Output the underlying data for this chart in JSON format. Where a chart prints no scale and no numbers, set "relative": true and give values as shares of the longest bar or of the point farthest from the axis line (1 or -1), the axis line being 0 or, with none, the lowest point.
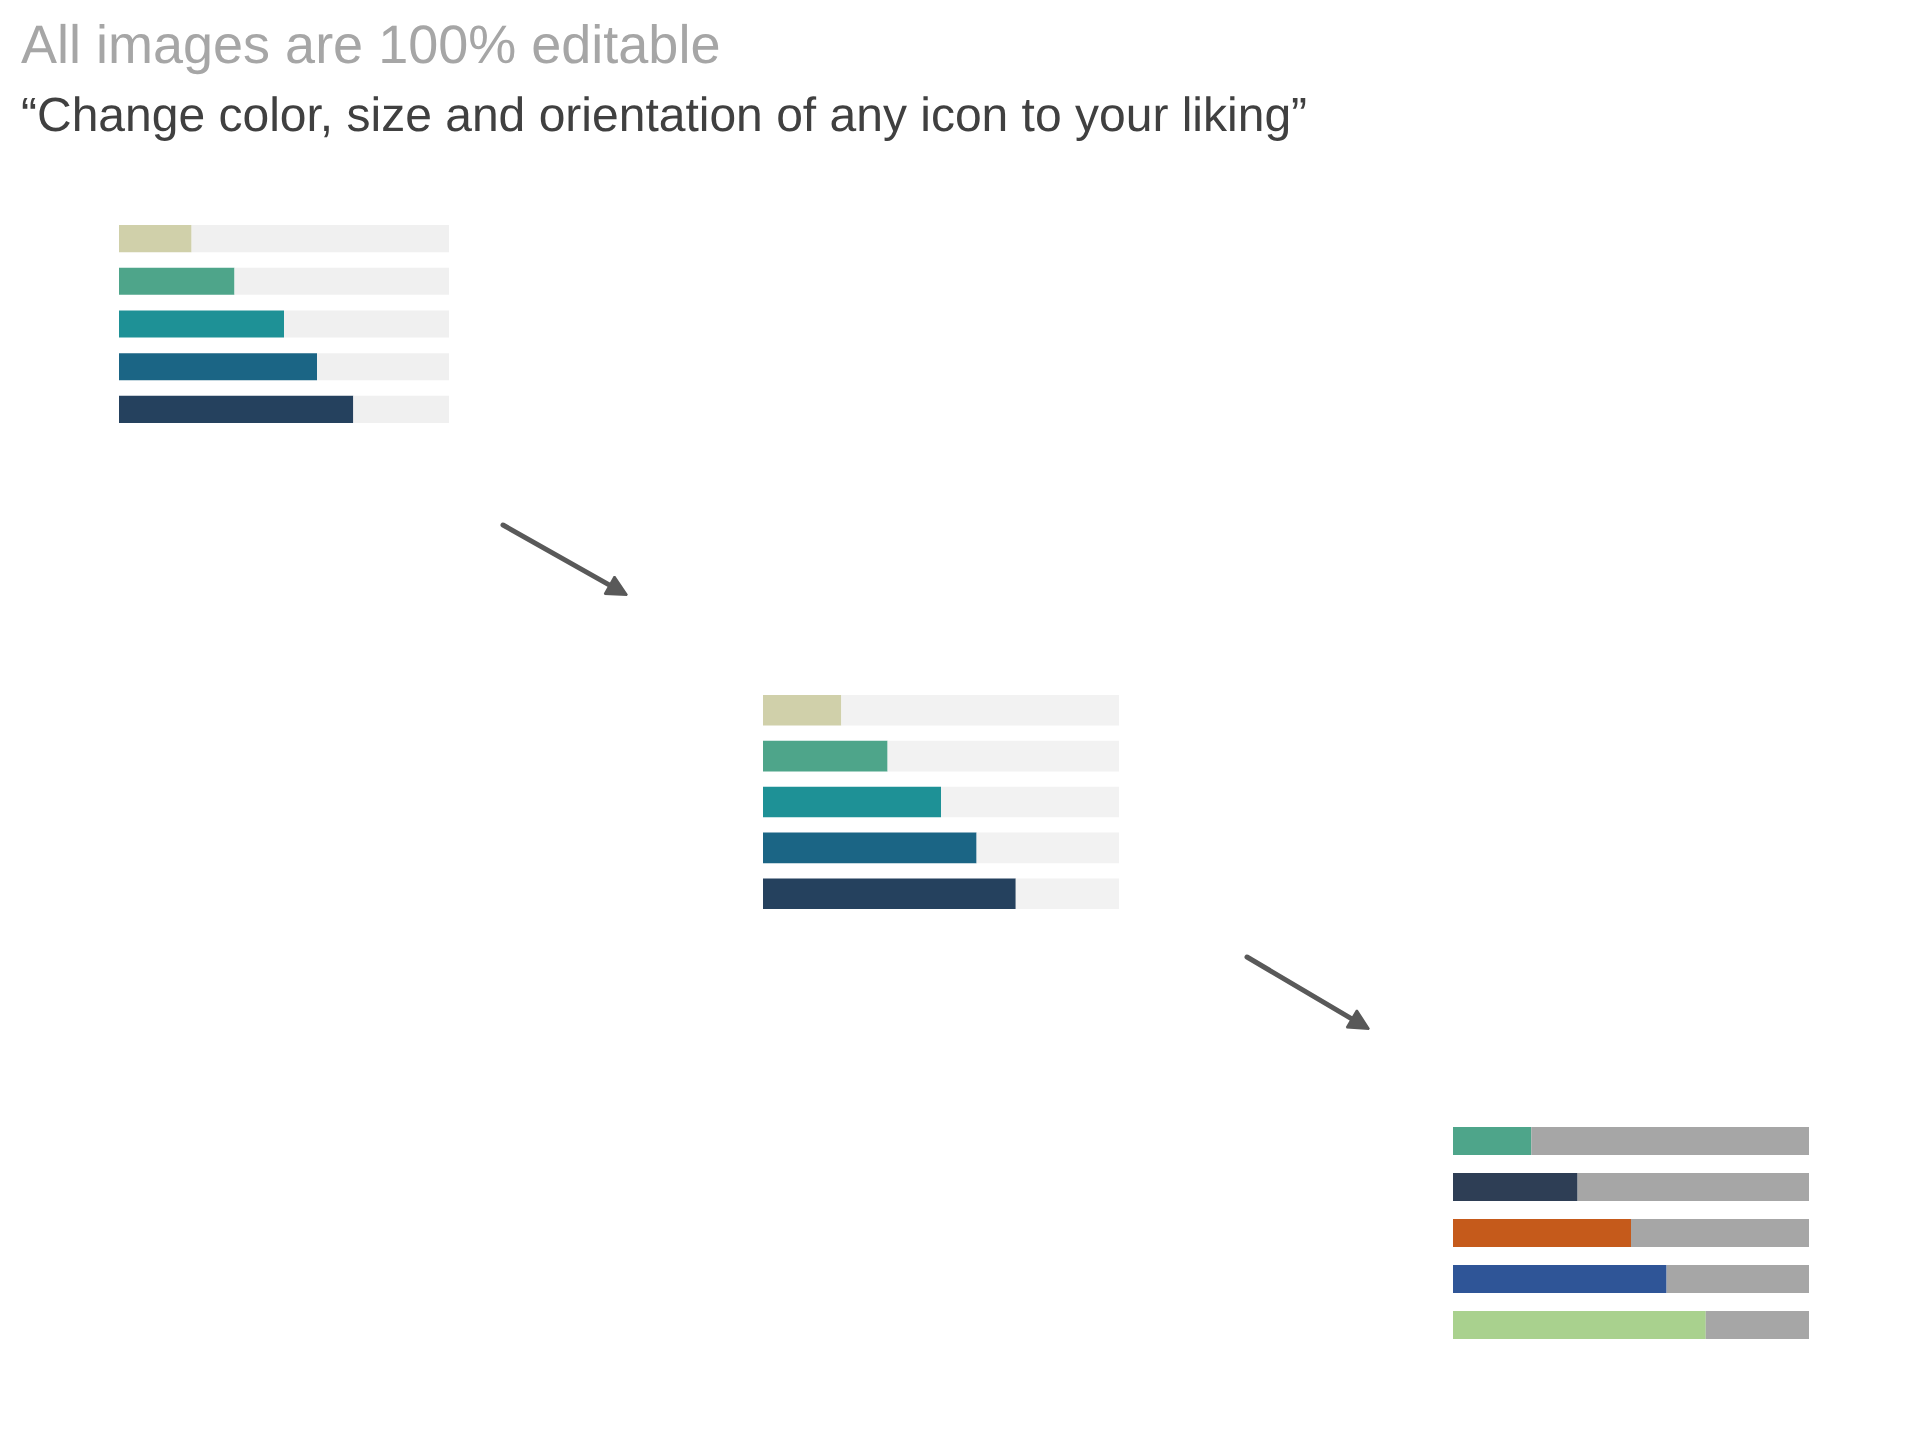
{
  "chart_data": [
    {
      "type": "bar",
      "title": "All images are 100% editable",
      "subtitle": "“Change color, size and orientation of any icon to your liking”",
      "orientation": "horizontal",
      "stacked": true,
      "relative": true,
      "categories": [
        null,
        null,
        null,
        null,
        null
      ],
      "series": [
        {
          "colors": [
            "#d0d0aa",
            "#4ea58a",
            "#1e9196",
            "#1b6585",
            "#25415e"
          ],
          "values": [
            0.22,
            0.35,
            0.5,
            0.6,
            0.71
          ]
        },
        {
          "color": "#f0f0f0",
          "values": [
            0.78,
            0.65,
            0.5,
            0.4,
            0.29
          ]
        }
      ]
    },
    {
      "type": "bar",
      "orientation": "horizontal",
      "stacked": true,
      "relative": true,
      "categories": [
        null,
        null,
        null,
        null,
        null
      ],
      "series": [
        {
          "colors": [
            "#d0d0aa",
            "#4ea58a",
            "#1e9196",
            "#1b6585",
            "#25415e"
          ],
          "values": [
            0.22,
            0.35,
            0.5,
            0.6,
            0.71
          ]
        },
        {
          "color": "#f2f2f2",
          "values": [
            0.78,
            0.65,
            0.5,
            0.4,
            0.29
          ]
        }
      ]
    },
    {
      "type": "bar",
      "orientation": "horizontal",
      "stacked": true,
      "relative": true,
      "categories": [
        null,
        null,
        null,
        null,
        null
      ],
      "series": [
        {
          "colors": [
            "#4ea58a",
            "#2e3e55",
            "#c55a1b",
            "#2f5597",
            "#a9d18e"
          ],
          "values": [
            0.22,
            0.35,
            0.5,
            0.6,
            0.71
          ]
        },
        {
          "color": "#a6a6a6",
          "values": [
            0.78,
            0.65,
            0.5,
            0.4,
            0.29
          ]
        }
      ]
    }
  ]
}
